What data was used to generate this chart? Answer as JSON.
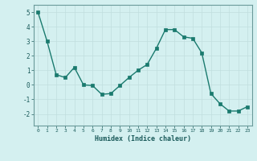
{
  "x": [
    0,
    1,
    2,
    3,
    4,
    5,
    6,
    7,
    8,
    9,
    10,
    11,
    12,
    13,
    14,
    15,
    16,
    17,
    18,
    19,
    20,
    21,
    22,
    23
  ],
  "y": [
    5.0,
    3.0,
    0.7,
    0.5,
    1.2,
    0.0,
    -0.05,
    -0.65,
    -0.6,
    -0.05,
    0.5,
    1.0,
    1.4,
    2.5,
    3.8,
    3.8,
    3.3,
    3.2,
    2.2,
    -0.6,
    -1.3,
    -1.8,
    -1.8,
    -1.5
  ],
  "xlabel": "Humidex (Indice chaleur)",
  "ylim": [
    -2.8,
    5.5
  ],
  "xlim": [
    -0.5,
    23.5
  ],
  "yticks": [
    -2,
    -1,
    0,
    1,
    2,
    3,
    4,
    5
  ],
  "xticks": [
    0,
    1,
    2,
    3,
    4,
    5,
    6,
    7,
    8,
    9,
    10,
    11,
    12,
    13,
    14,
    15,
    16,
    17,
    18,
    19,
    20,
    21,
    22,
    23
  ],
  "line_color": "#1a7a6e",
  "marker_color": "#1a7a6e",
  "bg_color": "#d4f0f0",
  "grid_color": "#c0dede",
  "spine_color": "#6a9a9a"
}
